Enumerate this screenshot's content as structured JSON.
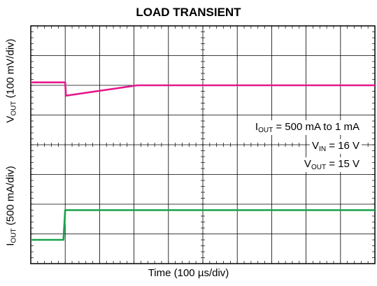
{
  "chart_data": [
    {
      "type": "line",
      "title": "LOAD TRANSIENT",
      "xlabel": "Time (100 µs/div)",
      "ylabel_main": "V",
      "ylabel_sub": "OUT",
      "ylabel_rest": " (100 mV/div)",
      "x_divisions": 10,
      "y_divisions": 8,
      "series": [
        {
          "color": "#e5178b",
          "x_div": [
            0,
            1.0,
            1.02,
            3.1,
            10
          ],
          "y_div": [
            6.1,
            6.1,
            5.65,
            6.0,
            6.0
          ]
        },
        {
          "color": "#16a34a",
          "x_div": [
            0,
            0.95,
            1.0,
            10
          ],
          "y_div": [
            0.8,
            0.8,
            1.8,
            1.8
          ]
        }
      ],
      "grid": true
    }
  ],
  "lower_ylabel": {
    "main": "I",
    "sub": "OUT",
    "rest": " (500 mA/div)"
  },
  "conditions": [
    {
      "main": "I",
      "sub": "OUT",
      "rest": " = 500 mA to 1 mA"
    },
    {
      "main": "V",
      "sub": "IN",
      "rest": " = 16 V"
    },
    {
      "main": "V",
      "sub": "OUT",
      "rest": " = 15 V"
    }
  ]
}
